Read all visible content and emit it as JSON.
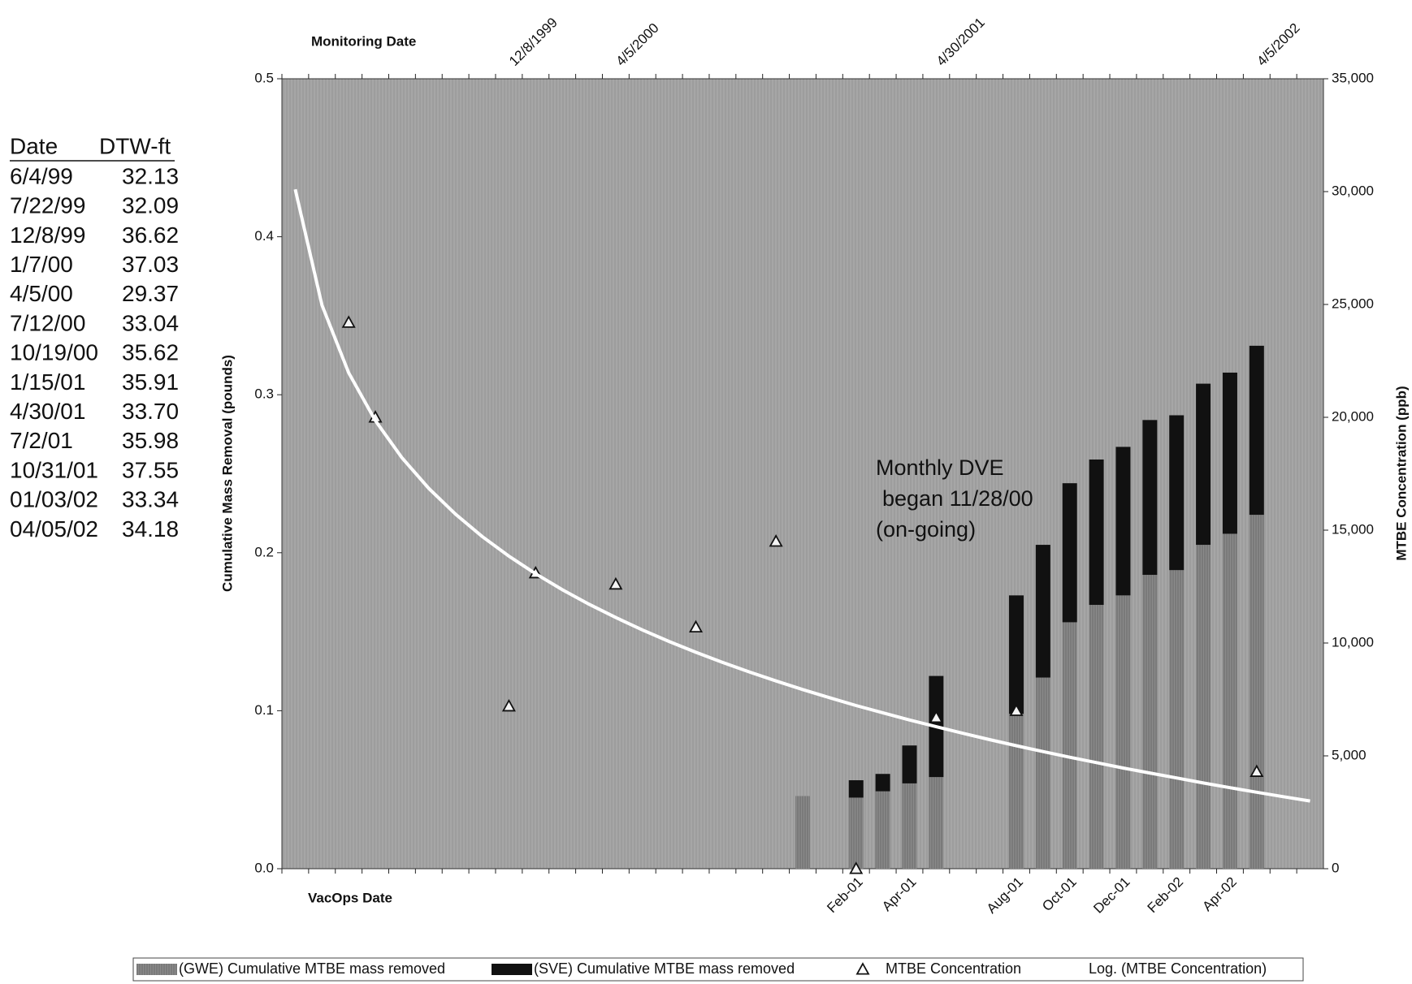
{
  "chart_data": {
    "type": "bar",
    "stacked": true,
    "x_label_top": "Monitoring Date",
    "x_label": "VacOps Date",
    "y_label": "Cumulative Mass Removal (pounds)",
    "y2_label": "MTBE Concentration (ppb)",
    "categories": [
      null,
      null,
      null,
      null,
      null,
      null,
      null,
      null,
      null,
      null,
      null,
      null,
      null,
      null,
      null,
      null,
      null,
      null,
      null,
      null,
      null,
      "Feb-01",
      null,
      "Apr-01",
      null,
      null,
      null,
      "Aug-01",
      null,
      "Oct-01",
      null,
      "Dec-01",
      null,
      "Feb-02",
      null,
      "Apr-02",
      null,
      null,
      null
    ],
    "top_categories": [
      null,
      null,
      null,
      null,
      null,
      null,
      null,
      null,
      "12/8/1999",
      null,
      null,
      null,
      "4/5/2000",
      null,
      null,
      null,
      null,
      null,
      null,
      null,
      null,
      null,
      null,
      null,
      "4/30/2001",
      null,
      null,
      null,
      null,
      null,
      null,
      null,
      null,
      null,
      null,
      null,
      "4/5/2002",
      null,
      null
    ],
    "ylim": [
      0,
      0.5
    ],
    "yticks": [
      {
        "value": 0,
        "label": "0.0"
      },
      0.1,
      0.2,
      0.3,
      0.4,
      0.5
    ],
    "y2lim": [
      0,
      35000
    ],
    "y2ticks": [
      0,
      {
        "value": 5000,
        "label": "5,000"
      },
      {
        "value": 10000,
        "label": "10,000"
      },
      {
        "value": 15000,
        "label": "15,000"
      },
      {
        "value": 20000,
        "label": "20,000"
      },
      {
        "value": 25000,
        "label": "25,000"
      },
      {
        "value": 30000,
        "label": "30,000"
      },
      {
        "value": 35000,
        "label": "35,000"
      }
    ],
    "grid": false,
    "legend": "bottom",
    "series": [
      {
        "name": "(GWE) Cumulative MTBE mass removed",
        "type": "bar",
        "color": "#8a8a8a",
        "values": [
          null,
          null,
          null,
          null,
          null,
          null,
          null,
          null,
          null,
          null,
          null,
          null,
          null,
          null,
          null,
          null,
          null,
          null,
          null,
          0.046,
          null,
          0.045,
          0.049,
          0.054,
          0.058,
          null,
          null,
          0.098,
          0.121,
          0.156,
          0.167,
          0.173,
          0.186,
          0.189,
          0.205,
          0.212,
          0.224,
          null,
          null
        ]
      },
      {
        "name": "(SVE) Cumulative MTBE mass removed",
        "type": "bar",
        "color": "#111111",
        "values": [
          null,
          null,
          null,
          null,
          null,
          null,
          null,
          null,
          null,
          null,
          null,
          null,
          null,
          null,
          null,
          null,
          null,
          null,
          null,
          null,
          null,
          0.011,
          0.011,
          0.024,
          0.064,
          null,
          null,
          0.075,
          0.084,
          0.088,
          0.092,
          0.094,
          0.098,
          0.098,
          0.102,
          0.102,
          0.107,
          null,
          null
        ]
      },
      {
        "name": "MTBE Concentration",
        "type": "scatter",
        "axis": "y2",
        "marker": "triangle",
        "color": "#111111",
        "values": [
          null,
          null,
          24200,
          20000,
          null,
          null,
          null,
          null,
          7200,
          13100,
          null,
          null,
          12600,
          null,
          null,
          10700,
          null,
          null,
          14500,
          null,
          null,
          0,
          null,
          null,
          6700,
          null,
          null,
          7000,
          null,
          null,
          null,
          null,
          null,
          null,
          null,
          null,
          4300,
          null,
          null
        ]
      },
      {
        "name": "Log. (MTBE Concentration)",
        "type": "line",
        "axis": "y2",
        "color": "#ffffff",
        "values": [
          30100,
          24970,
          21970,
          19850,
          18200,
          16850,
          15710,
          14720,
          13850,
          13070,
          12360,
          11720,
          11130,
          10580,
          10070,
          9590,
          9140,
          8720,
          8320,
          7940,
          7580,
          7230,
          6910,
          6590,
          6290,
          6000,
          5720,
          5450,
          5190,
          4940,
          4700,
          4460,
          4240,
          4020,
          3800,
          3590,
          3390,
          3190,
          3000
        ]
      }
    ],
    "annotation": {
      "lines": [
        "Monthly DVE",
        "began 11/28/00",
        "(on-going)"
      ]
    }
  },
  "table": {
    "header": [
      "Date",
      "DTW-ft"
    ],
    "rows": [
      [
        "6/4/99",
        "32.13"
      ],
      [
        "7/22/99",
        "32.09"
      ],
      [
        "12/8/99",
        "36.62"
      ],
      [
        "1/7/00",
        "37.03"
      ],
      [
        "4/5/00",
        "29.37"
      ],
      [
        "7/12/00",
        "33.04"
      ],
      [
        "10/19/00",
        "35.62"
      ],
      [
        "1/15/01",
        "35.91"
      ],
      [
        "4/30/01",
        "33.70"
      ],
      [
        "7/2/01",
        "35.98"
      ],
      [
        "10/31/01",
        "37.55"
      ],
      [
        "01/03/02",
        "33.34"
      ],
      [
        "04/05/02",
        "34.18"
      ]
    ]
  }
}
